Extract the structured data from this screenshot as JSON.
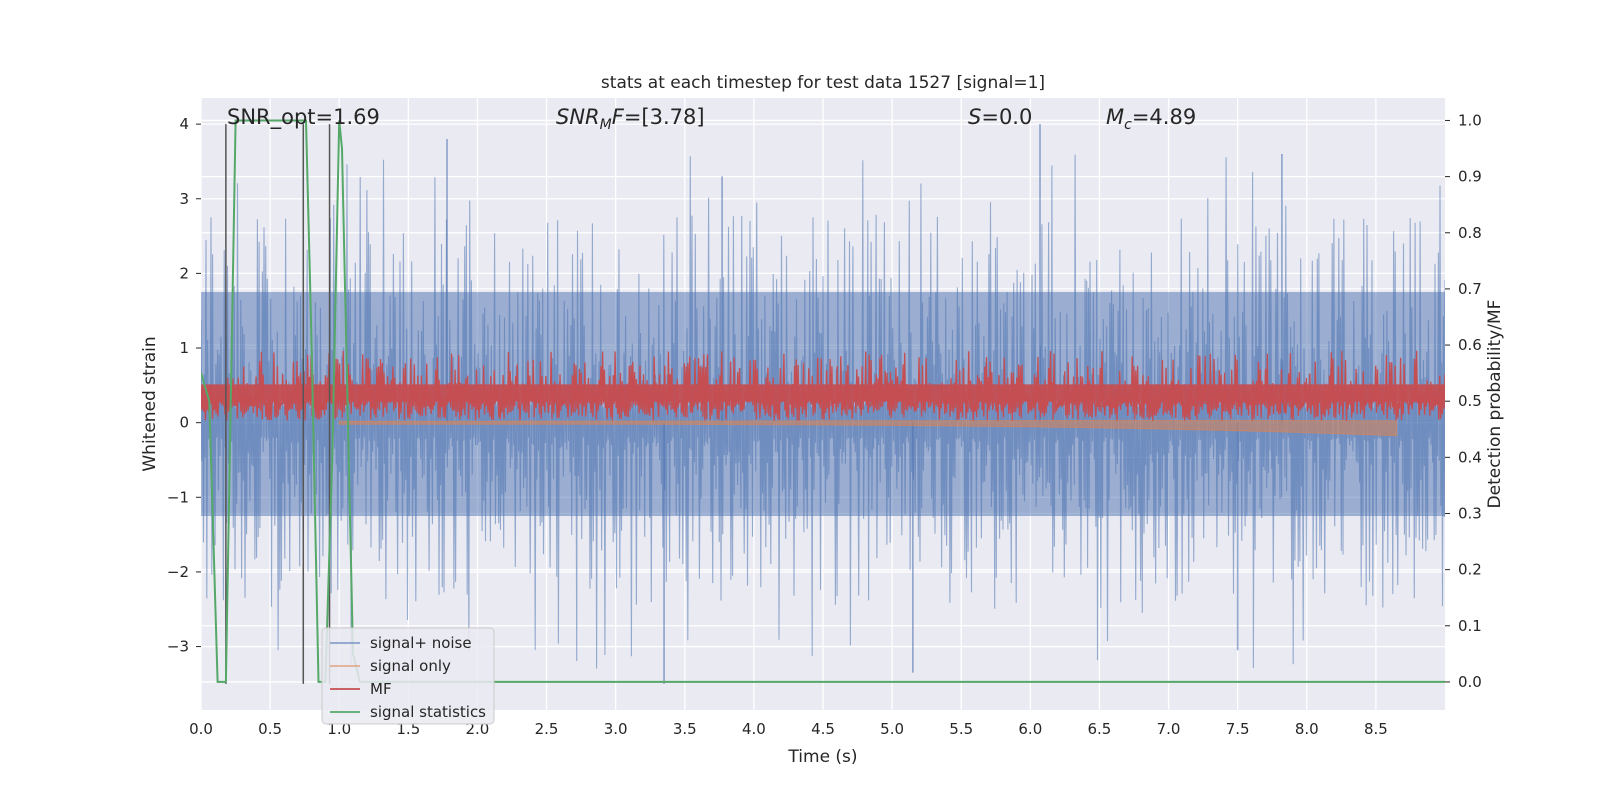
{
  "chart_data": {
    "type": "line",
    "title": "stats at each timestep for test data 1527 [signal=1]",
    "xlabel": "Time (s)",
    "ylabel_left": "Whitened strain",
    "ylabel_right": "Detection probability/MF",
    "xlim": [
      0.0,
      9.0
    ],
    "ylim_left": [
      -3.85,
      4.35
    ],
    "ylim_right": [
      -0.05,
      1.04
    ],
    "xticks": [
      "0.0",
      "0.5",
      "1.0",
      "1.5",
      "2.0",
      "2.5",
      "3.0",
      "3.5",
      "4.0",
      "4.5",
      "5.0",
      "5.5",
      "6.0",
      "6.5",
      "7.0",
      "7.5",
      "8.0",
      "8.5"
    ],
    "xtick_values": [
      0.0,
      0.5,
      1.0,
      1.5,
      2.0,
      2.5,
      3.0,
      3.5,
      4.0,
      4.5,
      5.0,
      5.5,
      6.0,
      6.5,
      7.0,
      7.5,
      8.0,
      8.5
    ],
    "yticks_left": [
      "4",
      "3",
      "2",
      "1",
      "0",
      "−1",
      "−2",
      "−3"
    ],
    "ytick_values_left": [
      4,
      3,
      2,
      1,
      0,
      -1,
      -2,
      -3
    ],
    "yticks_right": [
      "1.0",
      "0.9",
      "0.8",
      "0.7",
      "0.6",
      "0.5",
      "0.4",
      "0.3",
      "0.2",
      "0.1",
      "0.0"
    ],
    "ytick_values_right": [
      1.0,
      0.9,
      0.8,
      0.7,
      0.6,
      0.5,
      0.4,
      0.3,
      0.2,
      0.1,
      0.0
    ],
    "grid": true,
    "legend_position": "lower-left",
    "annotations": [
      {
        "text": "SNR_opt=1.69",
        "x": 0.19,
        "y": 4.0
      },
      {
        "text": "SNR_MF=[3.78]",
        "x": 2.6,
        "y": 4.0
      },
      {
        "text": "S=0.0",
        "x": 5.6,
        "y": 4.0
      },
      {
        "text": "M_c=4.89",
        "x": 6.6,
        "y": 4.0
      }
    ],
    "series": [
      {
        "name": "signal+ noise",
        "axis": "left",
        "color": "#4c72b0",
        "style": "noise band, amplitude about ±1.7 with spikes to 4.0 and -3.5",
        "envelope_upper": 1.75,
        "envelope_lower": -1.25,
        "spikes": [
          [
            1.78,
            3.8
          ],
          [
            3.77,
            3.3
          ],
          [
            6.07,
            4.0
          ],
          [
            7.82,
            3.6
          ],
          [
            3.35,
            -3.5
          ],
          [
            5.15,
            -3.35
          ],
          [
            7.5,
            -3.05
          ]
        ]
      },
      {
        "name": "signal only",
        "axis": "left",
        "color": "#dd8452",
        "style": "chirp, nearly zero, growing slightly until merger",
        "end_time": 8.65,
        "end_amplitude": -0.15
      },
      {
        "name": "MF",
        "axis": "right",
        "color": "#c44e52",
        "style": "matched-filter band between about 0.48 and 0.58",
        "band_low": 0.48,
        "band_high": 0.58
      },
      {
        "name": "signal statistics",
        "axis": "right",
        "color": "#55a868",
        "x": [
          0.0,
          0.06,
          0.12,
          0.18,
          0.25,
          0.3,
          0.55,
          0.72,
          0.74,
          0.76,
          0.8,
          0.85,
          0.9,
          0.95,
          1.0,
          1.02,
          1.06,
          1.1,
          1.15,
          1.3,
          2.0,
          3.0,
          4.0,
          5.0,
          6.0,
          7.0,
          8.0,
          9.0
        ],
        "y": [
          0.55,
          0.5,
          0.0,
          0.0,
          1.0,
          1.0,
          1.0,
          1.0,
          1.0,
          1.0,
          0.6,
          0.0,
          0.0,
          0.4,
          1.0,
          0.95,
          0.5,
          0.05,
          0.0,
          0.0,
          0.0,
          0.0,
          0.0,
          0.0,
          0.0,
          0.0,
          0.0,
          0.0
        ]
      },
      {
        "name": "",
        "axis": "left",
        "color": "#555555",
        "style": "vertical marker lines",
        "x_positions": [
          0.18,
          0.74,
          0.93
        ],
        "y_range": [
          -3.5,
          4.0
        ]
      }
    ]
  }
}
